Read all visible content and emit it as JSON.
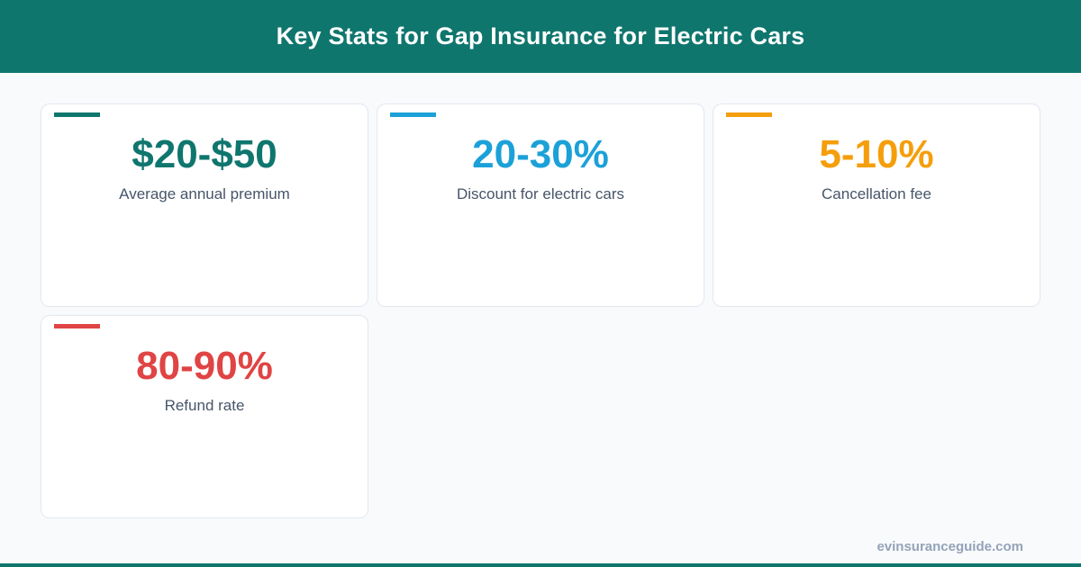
{
  "header": {
    "title": "Key Stats for Gap Insurance for Electric Cars",
    "background_color": "#0f766e"
  },
  "stats": [
    {
      "value": "$20-$50",
      "label": "Average annual premium",
      "color": "#0f766e"
    },
    {
      "value": "20-30%",
      "label": "Discount for electric cars",
      "color": "#1ba1d8"
    },
    {
      "value": "5-10%",
      "label": "Cancellation fee",
      "color": "#f59e0b"
    },
    {
      "value": "80-90%",
      "label": "Refund rate",
      "color": "#e04444"
    }
  ],
  "footer": {
    "site": "evinsuranceguide.com"
  }
}
